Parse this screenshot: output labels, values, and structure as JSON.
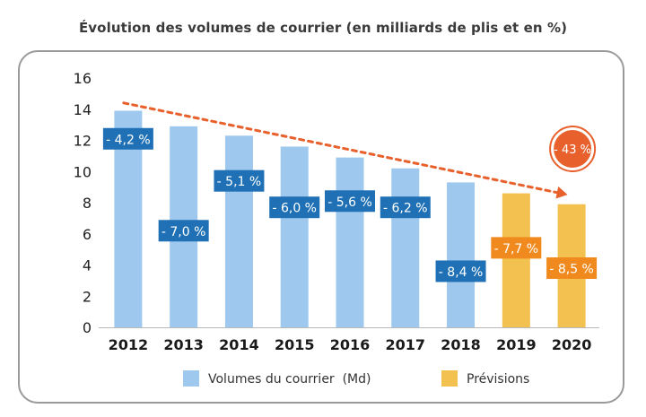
{
  "chart_data": {
    "type": "bar",
    "title": "Évolution des volumes de courrier (en milliards de plis et en %)",
    "categories": [
      "2012",
      "2013",
      "2014",
      "2015",
      "2016",
      "2017",
      "2018",
      "2019",
      "2020"
    ],
    "values": [
      13.9,
      12.9,
      12.3,
      11.6,
      10.9,
      10.2,
      9.3,
      8.6,
      7.9
    ],
    "series_type": [
      "actual",
      "actual",
      "actual",
      "actual",
      "actual",
      "actual",
      "actual",
      "forecast",
      "forecast"
    ],
    "change_labels": [
      "- 4,2 %",
      "- 7,0 %",
      "- 5,1 %",
      "- 6,0 %",
      "- 5,6 %",
      "- 6,2 %",
      "- 8,4 %",
      "- 7,7 %",
      "- 8,5 %"
    ],
    "label_values": [
      12.1,
      6.2,
      9.4,
      7.7,
      8.1,
      7.7,
      3.6,
      5.1,
      3.8
    ],
    "ylim": [
      0,
      16
    ],
    "yticks": [
      0,
      2,
      4,
      6,
      8,
      10,
      12,
      14,
      16
    ],
    "trend": {
      "from": [
        "2012",
        14.4
      ],
      "to": [
        "2020",
        8.6
      ],
      "label": "- 43 %"
    },
    "legend": [
      {
        "label": "Volumes du courrier  (Md)",
        "series": "actual"
      },
      {
        "label": "Prévisions",
        "series": "forecast"
      }
    ],
    "legend_position": "bottom",
    "colors": {
      "actual": "#9ec8ee",
      "forecast": "#f2c14f",
      "actual_label": "#1f70b5",
      "forecast_label": "#f08a1e",
      "trend": "#e8602c"
    }
  }
}
